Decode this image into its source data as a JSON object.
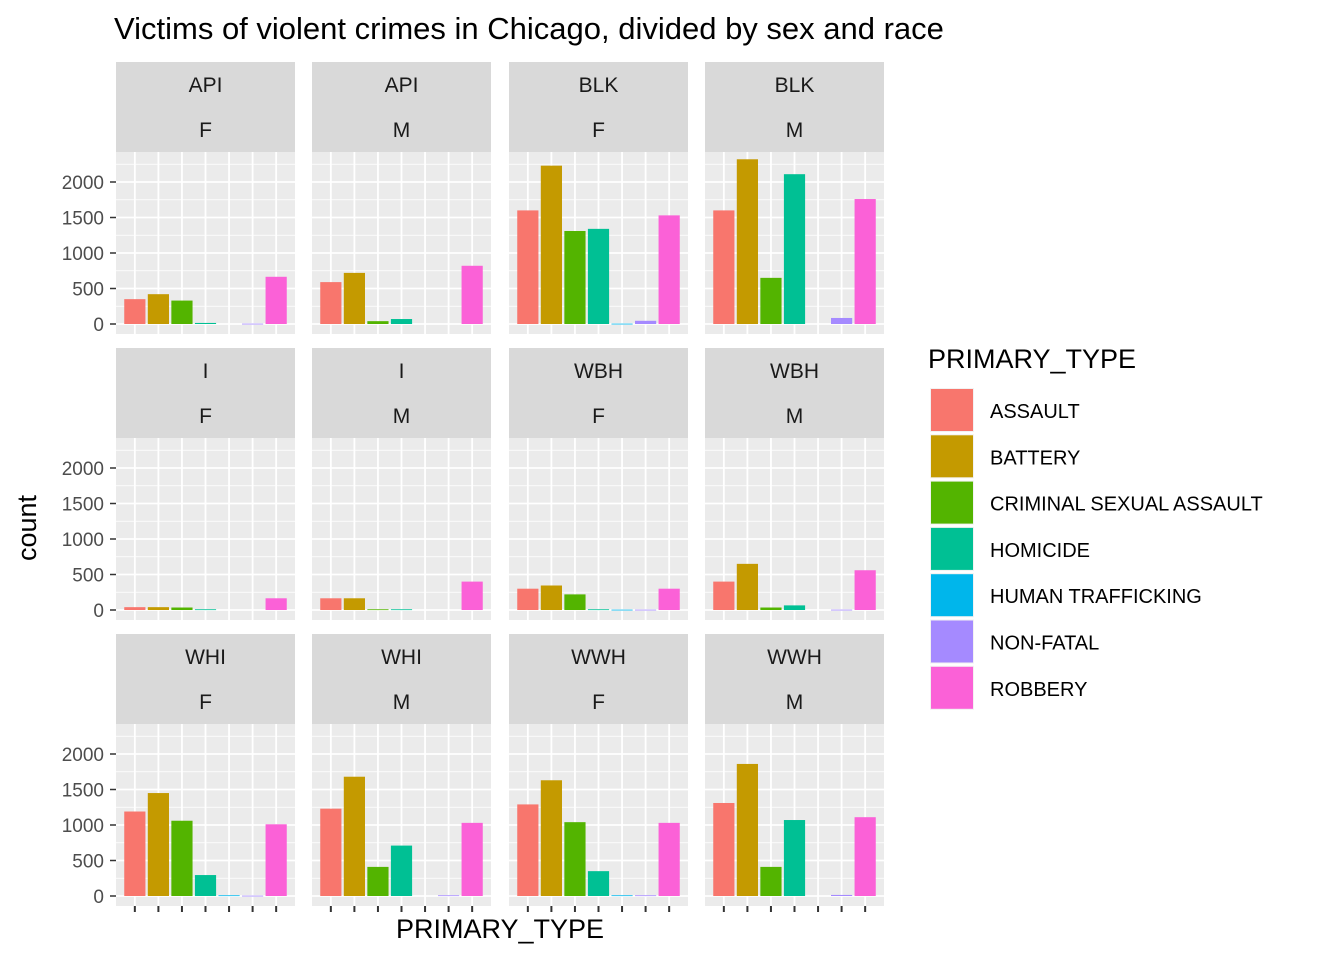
{
  "chart_data": {
    "type": "bar",
    "title": "Victims of violent crimes in Chicago, divided by sex and race",
    "xlabel": "PRIMARY_TYPE",
    "ylabel": "count",
    "ylim": [
      0,
      2250
    ],
    "yticks": [
      0,
      500,
      1000,
      1500,
      2000
    ],
    "categories": [
      "ASSAULT",
      "BATTERY",
      "CRIMINAL SEXUAL ASSAULT",
      "HOMICIDE",
      "HUMAN TRAFFICKING",
      "NON-FATAL",
      "ROBBERY"
    ],
    "colors": [
      "#F8766D",
      "#C49A00",
      "#53B400",
      "#00C094",
      "#00B6EB",
      "#A58AFF",
      "#FB61D7"
    ],
    "legend": {
      "title": "PRIMARY_TYPE",
      "placement": "right",
      "entries": [
        "ASSAULT",
        "BATTERY",
        "CRIMINAL SEXUAL ASSAULT",
        "HOMICIDE",
        "HUMAN TRAFFICKING",
        "NON-FATAL",
        "ROBBERY"
      ]
    },
    "grid": true,
    "facets": [
      {
        "race": "API",
        "sex": "F",
        "values": [
          350,
          420,
          330,
          15,
          0,
          5,
          665
        ]
      },
      {
        "race": "API",
        "sex": "M",
        "values": [
          590,
          720,
          40,
          70,
          0,
          0,
          820
        ]
      },
      {
        "race": "BLK",
        "sex": "F",
        "values": [
          1600,
          2230,
          1310,
          1340,
          5,
          45,
          1530
        ]
      },
      {
        "race": "BLK",
        "sex": "M",
        "values": [
          1600,
          2320,
          650,
          2110,
          0,
          85,
          1760
        ]
      },
      {
        "race": "I",
        "sex": "F",
        "values": [
          40,
          40,
          35,
          10,
          0,
          0,
          165
        ]
      },
      {
        "race": "I",
        "sex": "M",
        "values": [
          165,
          165,
          10,
          10,
          0,
          0,
          400
        ]
      },
      {
        "race": "WBH",
        "sex": "F",
        "values": [
          300,
          345,
          220,
          10,
          5,
          5,
          300
        ]
      },
      {
        "race": "WBH",
        "sex": "M",
        "values": [
          400,
          650,
          35,
          65,
          0,
          5,
          560
        ]
      },
      {
        "race": "WHI",
        "sex": "F",
        "values": [
          1190,
          1450,
          1060,
          295,
          10,
          5,
          1010
        ]
      },
      {
        "race": "WHI",
        "sex": "M",
        "values": [
          1230,
          1680,
          410,
          710,
          0,
          10,
          1030
        ]
      },
      {
        "race": "WWH",
        "sex": "F",
        "values": [
          1290,
          1630,
          1040,
          350,
          10,
          10,
          1030
        ]
      },
      {
        "race": "WWH",
        "sex": "M",
        "values": [
          1310,
          1860,
          410,
          1070,
          0,
          15,
          1110
        ]
      }
    ]
  }
}
